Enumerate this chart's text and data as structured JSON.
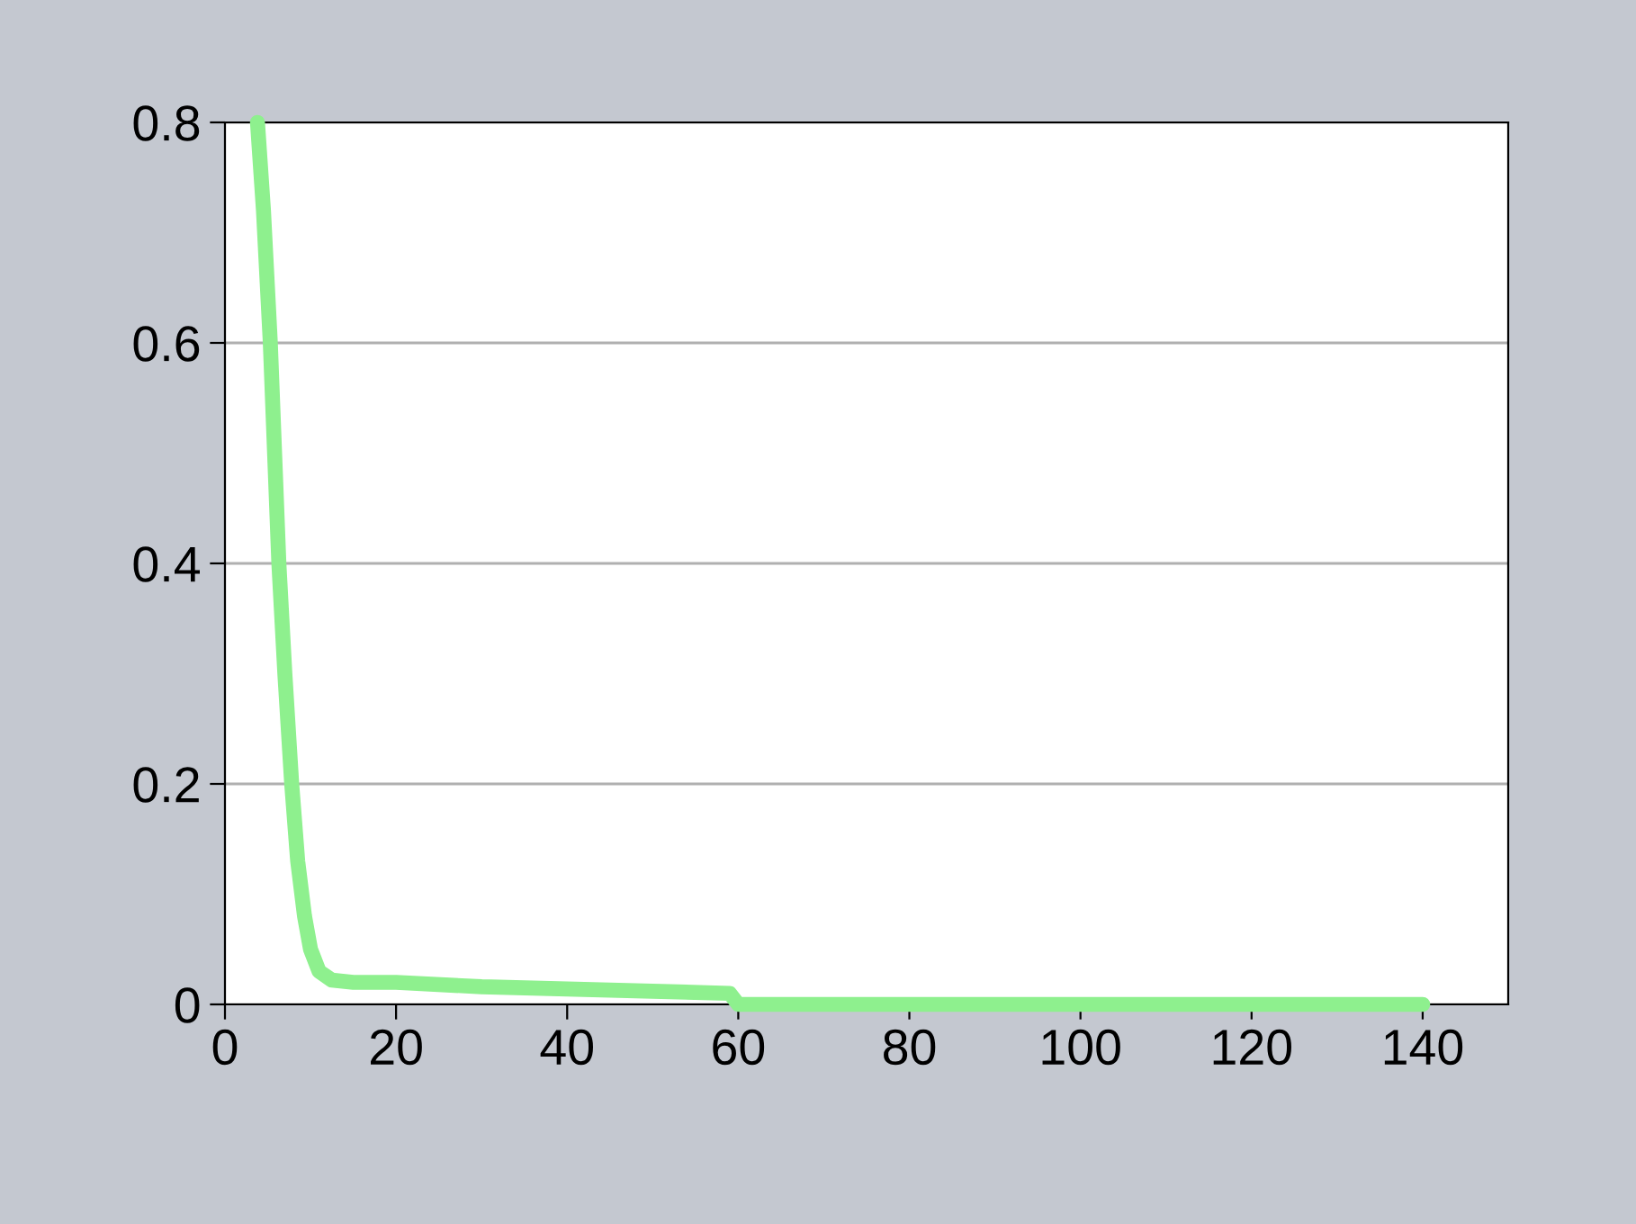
{
  "chart_data": {
    "type": "line",
    "color": "#8ef08e",
    "x": [
      3.8,
      4.5,
      5.3,
      6.3,
      7.0,
      7.8,
      8.5,
      9.3,
      10.0,
      11.0,
      12.5,
      15,
      20,
      30,
      40,
      50,
      59,
      60,
      80,
      100,
      120,
      140
    ],
    "values": [
      0.8,
      0.72,
      0.6,
      0.4,
      0.3,
      0.2,
      0.13,
      0.08,
      0.05,
      0.03,
      0.022,
      0.02,
      0.02,
      0.016,
      0.014,
      0.012,
      0.01,
      0,
      0,
      0,
      0,
      0
    ],
    "xlim": [
      0,
      150
    ],
    "ylim": [
      0,
      0.8
    ],
    "xticks": [
      0,
      20,
      40,
      60,
      80,
      100,
      120,
      140
    ],
    "yticks": [
      0,
      0.2,
      0.4,
      0.6,
      0.8
    ],
    "grid": "y",
    "marker": "none",
    "line_style": "solid",
    "legend": false
  }
}
